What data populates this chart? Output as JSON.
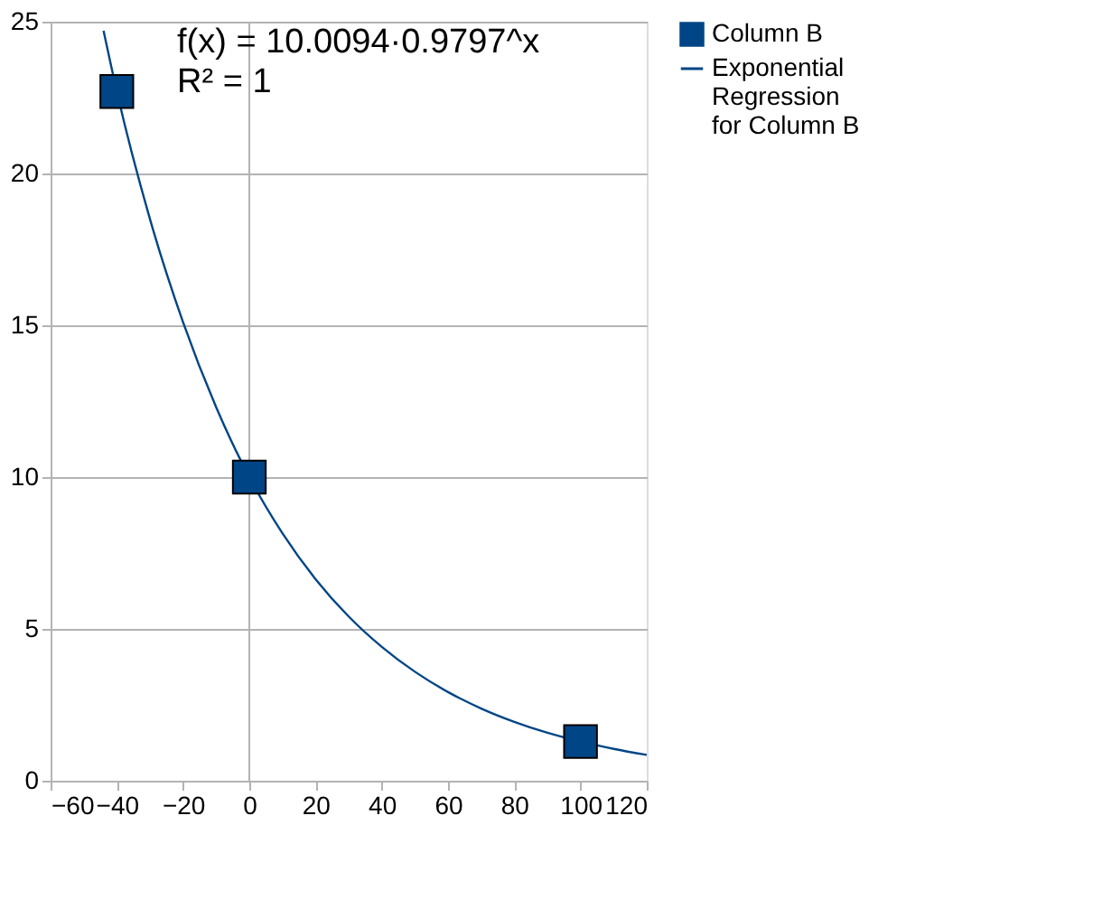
{
  "chart_data": {
    "type": "scatter",
    "xlim": [
      -60,
      120
    ],
    "ylim": [
      0,
      25
    ],
    "xticks": [
      -60,
      -40,
      -20,
      0,
      20,
      40,
      60,
      80,
      100,
      120
    ],
    "yticks": [
      0,
      5,
      10,
      15,
      20,
      25
    ],
    "grid": "y",
    "legend": "right",
    "annotations": [
      "f(x) = 10.0094·0.9797^x",
      "R² = 1"
    ],
    "ref_lines": [
      {
        "axis": "x",
        "value": 0,
        "color": "#b3b3b3"
      }
    ],
    "series": [
      {
        "name": "Column B",
        "marker": "square",
        "color": "#004586",
        "x": [
          -40,
          0,
          100
        ],
        "values": [
          22.7,
          10.0,
          1.29
        ]
      },
      {
        "name": "Exponential Regression for Column B",
        "type": "line",
        "marker": "none",
        "color": "#004586",
        "x": [
          -44,
          -40,
          -30,
          -20,
          -10,
          0,
          10,
          20,
          30,
          40,
          50,
          60,
          70,
          80,
          90,
          100,
          110,
          120
        ],
        "values": [
          24.7,
          22.7,
          18.5,
          15.1,
          12.3,
          10.0,
          8.15,
          6.64,
          5.41,
          4.41,
          3.59,
          2.92,
          2.38,
          1.94,
          1.58,
          1.29,
          1.05,
          0.85
        ]
      }
    ]
  }
}
